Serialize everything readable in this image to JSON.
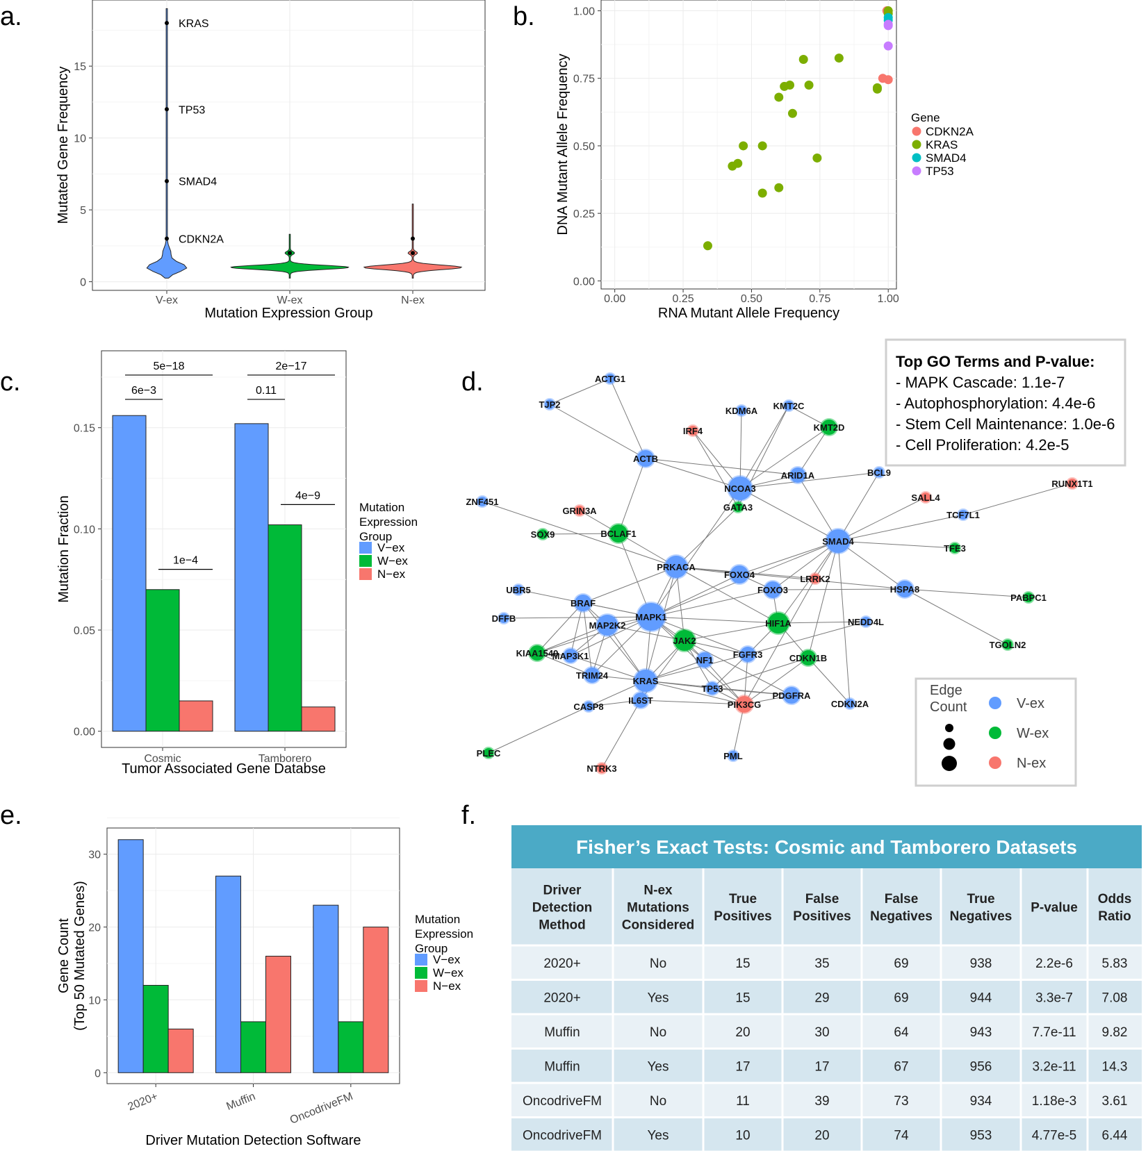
{
  "panels": {
    "a": "a.",
    "b": "b.",
    "c": "c.",
    "d": "d.",
    "e": "e.",
    "f": "f."
  },
  "colors": {
    "vex": "#619CFF",
    "wex": "#00BA38",
    "nex": "#F8766D",
    "cdkn2a": "#F8766D",
    "kras": "#7CAE00",
    "smad4": "#00BFC4",
    "tp53": "#C77CFF",
    "table_header": "#4BAAC6"
  },
  "chart_data": [
    {
      "panel": "a",
      "type": "violin",
      "xlabel": "Mutation Expression Group",
      "ylabel": "Mutated Gene Frequency",
      "categories": [
        "V-ex",
        "W-ex",
        "N-ex"
      ],
      "yticks": [
        0,
        5,
        10,
        15
      ],
      "ylim": [
        -0.6,
        19.6
      ],
      "grid": true,
      "outliers": [
        {
          "category": "V-ex",
          "value": 18,
          "label": "KRAS"
        },
        {
          "category": "V-ex",
          "value": 12,
          "label": "TP53"
        },
        {
          "category": "V-ex",
          "value": 7,
          "label": "SMAD4"
        },
        {
          "category": "V-ex",
          "value": 3,
          "label": "CDKN2A"
        },
        {
          "category": "W-ex",
          "value": 2,
          "label": ""
        },
        {
          "category": "N-ex",
          "value": 2,
          "label": ""
        },
        {
          "category": "N-ex",
          "value": 3,
          "label": ""
        }
      ]
    },
    {
      "panel": "b",
      "type": "scatter",
      "xlabel": "RNA Mutant Allele Frequency",
      "ylabel": "DNA Mutant Allele Frequency",
      "xlim": [
        -0.05,
        1.03
      ],
      "ylim": [
        -0.03,
        1.04
      ],
      "xticks": [
        "0.00",
        "0.25",
        "0.50",
        "0.75",
        "1.00"
      ],
      "yticks": [
        "0.00",
        "0.25",
        "0.50",
        "0.75",
        "1.00"
      ],
      "legend_title": "Gene",
      "series": [
        {
          "name": "CDKN2A",
          "points": [
            [
              0.98,
              0.75
            ],
            [
              1.0,
              0.745
            ],
            [
              0.995,
              1.0
            ]
          ]
        },
        {
          "name": "KRAS",
          "points": [
            [
              0.34,
              0.13
            ],
            [
              0.43,
              0.425
            ],
            [
              0.45,
              0.435
            ],
            [
              0.47,
              0.5
            ],
            [
              0.54,
              0.5
            ],
            [
              0.54,
              0.325
            ],
            [
              0.6,
              0.68
            ],
            [
              0.62,
              0.72
            ],
            [
              0.64,
              0.725
            ],
            [
              0.65,
              0.62
            ],
            [
              0.69,
              0.82
            ],
            [
              0.71,
              0.725
            ],
            [
              0.74,
              0.455
            ],
            [
              0.82,
              0.825
            ],
            [
              0.96,
              0.715
            ],
            [
              0.96,
              0.71
            ],
            [
              0.6,
              0.345
            ],
            [
              1.0,
              1.0
            ],
            [
              1.0,
              0.99
            ]
          ]
        },
        {
          "name": "SMAD4",
          "points": [
            [
              1.0,
              0.975
            ],
            [
              1.0,
              0.965
            ]
          ]
        },
        {
          "name": "TP53",
          "points": [
            [
              1.0,
              0.95
            ],
            [
              1.0,
              0.945
            ],
            [
              1.0,
              0.87
            ]
          ]
        }
      ]
    },
    {
      "panel": "c",
      "type": "bar",
      "xlabel": "Tumor Associated Gene Databse",
      "ylabel": "Mutation Fraction",
      "categories": [
        "Cosmic",
        "Tamborero"
      ],
      "ylim": [
        -0.008,
        0.188
      ],
      "yticks": [
        "0.00",
        "0.05",
        "0.10",
        "0.15"
      ],
      "legend_title": [
        "Mutation",
        "Expression",
        "Group"
      ],
      "series": [
        {
          "name": "V−ex",
          "values": [
            0.156,
            0.152
          ]
        },
        {
          "name": "W−ex",
          "values": [
            0.07,
            0.102
          ]
        },
        {
          "name": "N−ex",
          "values": [
            0.015,
            0.012
          ]
        }
      ],
      "pvalues": [
        {
          "label": "5e−18",
          "category": 0,
          "from": 0,
          "to": 2,
          "y": 0.176
        },
        {
          "label": "6e−3",
          "category": 0,
          "from": 0,
          "to": 1,
          "y": 0.164
        },
        {
          "label": "1e−4",
          "category": 0,
          "from": 1,
          "to": 2,
          "y": 0.08
        },
        {
          "label": "2e−17",
          "category": 1,
          "from": 0,
          "to": 2,
          "y": 0.176
        },
        {
          "label": "0.11",
          "category": 1,
          "from": 0,
          "to": 1,
          "y": 0.164
        },
        {
          "label": "4e−9",
          "category": 1,
          "from": 1,
          "to": 2,
          "y": 0.112
        }
      ]
    },
    {
      "panel": "e",
      "type": "bar",
      "xlabel": "Driver Mutation Detection Software",
      "ylabel": [
        "Gene Count",
        "(Top 50 Mutated Genes)"
      ],
      "categories": [
        "2020+",
        "Muffin",
        "OncodriveFM"
      ],
      "ylim": [
        -1.5,
        33.6
      ],
      "yticks": [
        "0",
        "10",
        "20",
        "30"
      ],
      "legend_title": [
        "Mutation",
        "Expression",
        "Group"
      ],
      "series": [
        {
          "name": "V−ex",
          "values": [
            32,
            27,
            23
          ]
        },
        {
          "name": "W−ex",
          "values": [
            12,
            7,
            7
          ]
        },
        {
          "name": "N−ex",
          "values": [
            6,
            16,
            20
          ]
        }
      ]
    }
  ],
  "network": {
    "go_box": {
      "title": "Top GO Terms and P-value:",
      "items": [
        "- MAPK Cascade: 1.1e-7",
        "- Autophosphorylation: 4.4e-6",
        "- Stem Cell Maintenance: 1.0e-6",
        "- Cell Proliferation: 4.2e-5"
      ]
    },
    "legend": {
      "size_title": [
        "Edge",
        "Count"
      ],
      "groups": [
        "V-ex",
        "W-ex",
        "N-ex"
      ]
    },
    "nodes": [
      {
        "id": "ACTG1",
        "g": "V"
      },
      {
        "id": "TJP2",
        "g": "V"
      },
      {
        "id": "KDM6A",
        "g": "V"
      },
      {
        "id": "KMT2C",
        "g": "V"
      },
      {
        "id": "IRF4",
        "g": "N"
      },
      {
        "id": "KMT2D",
        "g": "W"
      },
      {
        "id": "ACTB",
        "g": "V"
      },
      {
        "id": "NCOA3",
        "g": "V"
      },
      {
        "id": "ARID1A",
        "g": "V"
      },
      {
        "id": "BCL9",
        "g": "V"
      },
      {
        "id": "RUNX1T1",
        "g": "N"
      },
      {
        "id": "SALL4",
        "g": "N"
      },
      {
        "id": "ZNF451",
        "g": "V"
      },
      {
        "id": "GRIN3A",
        "g": "N"
      },
      {
        "id": "GATA3",
        "g": "W"
      },
      {
        "id": "TCF7L1",
        "g": "V"
      },
      {
        "id": "SOX9",
        "g": "W"
      },
      {
        "id": "BCLAF1",
        "g": "W"
      },
      {
        "id": "SMAD4",
        "g": "V"
      },
      {
        "id": "TFE3",
        "g": "W"
      },
      {
        "id": "PRKACA",
        "g": "V"
      },
      {
        "id": "FOXO4",
        "g": "V"
      },
      {
        "id": "LRRK2",
        "g": "N"
      },
      {
        "id": "UBR5",
        "g": "V"
      },
      {
        "id": "FOXO3",
        "g": "V"
      },
      {
        "id": "HSPA8",
        "g": "V"
      },
      {
        "id": "PABPC1",
        "g": "W"
      },
      {
        "id": "BRAF",
        "g": "V"
      },
      {
        "id": "MAPK1",
        "g": "V"
      },
      {
        "id": "DFFB",
        "g": "V"
      },
      {
        "id": "MAP2K2",
        "g": "V"
      },
      {
        "id": "HIF1A",
        "g": "W"
      },
      {
        "id": "NEDD4L",
        "g": "V"
      },
      {
        "id": "JAK2",
        "g": "W"
      },
      {
        "id": "TGOLN2",
        "g": "W"
      },
      {
        "id": "KIAA1549",
        "g": "W"
      },
      {
        "id": "MAP3K1",
        "g": "V"
      },
      {
        "id": "NF1",
        "g": "V"
      },
      {
        "id": "FGFR3",
        "g": "V"
      },
      {
        "id": "CDKN1B",
        "g": "W"
      },
      {
        "id": "TRIM24",
        "g": "V"
      },
      {
        "id": "KRAS",
        "g": "V"
      },
      {
        "id": "TP53",
        "g": "V"
      },
      {
        "id": "PDGFRA",
        "g": "V"
      },
      {
        "id": "CASP8",
        "g": "V"
      },
      {
        "id": "IL6ST",
        "g": "V"
      },
      {
        "id": "PIK3CG",
        "g": "N"
      },
      {
        "id": "CDKN2A",
        "g": "V"
      },
      {
        "id": "PLEC",
        "g": "W"
      },
      {
        "id": "PML",
        "g": "V"
      },
      {
        "id": "NTRK3",
        "g": "N"
      }
    ]
  },
  "table": {
    "title": "Fisher’s Exact Tests: Cosmic and Tamborero Datasets",
    "headers": [
      [
        "Driver",
        "Detection",
        "Method"
      ],
      [
        "N-ex",
        "Mutations",
        "Considered"
      ],
      [
        "True",
        "Positives"
      ],
      [
        "False",
        "Positives"
      ],
      [
        "False",
        "Negatives"
      ],
      [
        "True",
        "Negatives"
      ],
      [
        "P-value"
      ],
      [
        "Odds",
        "Ratio"
      ]
    ],
    "rows": [
      [
        "2020+",
        "No",
        "15",
        "35",
        "69",
        "938",
        "2.2e-6",
        "5.83"
      ],
      [
        "2020+",
        "Yes",
        "15",
        "29",
        "69",
        "944",
        "3.3e-7",
        "7.08"
      ],
      [
        "Muffin",
        "No",
        "20",
        "30",
        "64",
        "943",
        "7.7e-11",
        "9.82"
      ],
      [
        "Muffin",
        "Yes",
        "17",
        "17",
        "67",
        "956",
        "3.2e-11",
        "14.3"
      ],
      [
        "OncodriveFM",
        "No",
        "11",
        "39",
        "73",
        "934",
        "1.18e-3",
        "3.61"
      ],
      [
        "OncodriveFM",
        "Yes",
        "10",
        "20",
        "74",
        "953",
        "4.77e-5",
        "6.44"
      ]
    ]
  }
}
